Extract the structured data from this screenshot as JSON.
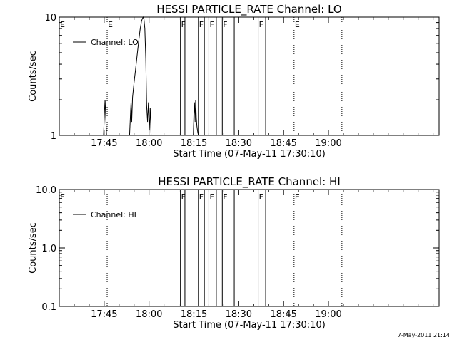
{
  "footer_timestamp": "7-May-2011 21:14",
  "chart_data": [
    {
      "type": "line",
      "title": "HESSI PARTICLE_RATE Channel: LO",
      "xlabel": "Start Time (07-May-11 17:30:10)",
      "ylabel": "Counts/sec",
      "x_unit": "minutes since 17:30",
      "xlim": [
        0,
        127
      ],
      "ylim": [
        1,
        10
      ],
      "y_scale": "log",
      "x_ticks": [
        {
          "value": 15,
          "label": "17:45"
        },
        {
          "value": 30,
          "label": "18:00"
        },
        {
          "value": 45,
          "label": "18:15"
        },
        {
          "value": 60,
          "label": "18:30"
        },
        {
          "value": 75,
          "label": "18:45"
        },
        {
          "value": 90,
          "label": "19:00"
        }
      ],
      "y_ticks": [
        {
          "value": 1,
          "label": "1"
        },
        {
          "value": 10,
          "label": "10"
        }
      ],
      "legend": {
        "position": "top-left",
        "entries": [
          "Channel: LO"
        ]
      },
      "grid": false,
      "series": [
        {
          "name": "Channel: LO",
          "x": [
            0,
            14.8,
            15.1,
            15.3,
            15.5,
            15.8,
            16.0,
            23.5,
            23.8,
            24.0,
            24.2,
            24.5,
            25.0,
            25.5,
            26.0,
            26.5,
            27.0,
            27.5,
            28.0,
            28.3,
            28.6,
            28.9,
            29.2,
            29.5,
            29.8,
            30.1,
            30.4,
            30.7,
            31.0,
            31.5,
            40.5,
            44.8,
            45.0,
            45.2,
            45.4,
            45.6,
            45.8,
            46.0,
            46.2,
            46.5,
            127
          ],
          "y": [
            1,
            1,
            1.6,
            2,
            1.5,
            1,
            1,
            1,
            1.5,
            1.9,
            1.3,
            2.1,
            2.8,
            3.6,
            4.7,
            6.1,
            7.8,
            9.3,
            10.5,
            9.7,
            8.0,
            4.5,
            1.8,
            1.3,
            1.9,
            1.1,
            1.7,
            1.0,
            1,
            1,
            1,
            1,
            1.5,
            1.9,
            1.3,
            2,
            1.4,
            1.2,
            1.1,
            1,
            1
          ]
        }
      ],
      "event_lines": [
        {
          "x": 16.0,
          "style": "dotted",
          "label": "E"
        },
        {
          "x": 40.5,
          "style": "solid",
          "label": "F"
        },
        {
          "x": 42.0,
          "style": "solid",
          "label": ""
        },
        {
          "x": 46.5,
          "style": "solid",
          "label": "F"
        },
        {
          "x": 48.5,
          "style": "solid",
          "label": ""
        },
        {
          "x": 50.0,
          "style": "solid",
          "label": "F"
        },
        {
          "x": 52.5,
          "style": "solid",
          "label": ""
        },
        {
          "x": 54.5,
          "style": "solid",
          "label": "F"
        },
        {
          "x": 58.5,
          "style": "solid",
          "label": ""
        },
        {
          "x": 66.5,
          "style": "solid",
          "label": "F"
        },
        {
          "x": 69.0,
          "style": "solid",
          "label": ""
        },
        {
          "x": 78.5,
          "style": "dotted",
          "label": "E"
        },
        {
          "x": 94.5,
          "style": "dotted",
          "label": ""
        }
      ],
      "edge_label": "E"
    },
    {
      "type": "line",
      "title": "HESSI PARTICLE_RATE Channel: HI",
      "xlabel": "Start Time (07-May-11 17:30:10)",
      "ylabel": "Counts/sec",
      "x_unit": "minutes since 17:30",
      "xlim": [
        0,
        127
      ],
      "ylim": [
        0.1,
        10
      ],
      "y_scale": "log",
      "x_ticks": [
        {
          "value": 15,
          "label": "17:45"
        },
        {
          "value": 30,
          "label": "18:00"
        },
        {
          "value": 45,
          "label": "18:15"
        },
        {
          "value": 60,
          "label": "18:30"
        },
        {
          "value": 75,
          "label": "18:45"
        },
        {
          "value": 90,
          "label": "19:00"
        }
      ],
      "y_ticks": [
        {
          "value": 0.1,
          "label": "0.1"
        },
        {
          "value": 1,
          "label": "1.0"
        },
        {
          "value": 10,
          "label": "10.0"
        }
      ],
      "legend": {
        "position": "top-left",
        "entries": [
          "Channel: HI"
        ]
      },
      "grid": false,
      "series": [
        {
          "name": "Channel: HI",
          "x": [],
          "y": []
        }
      ],
      "event_lines": [
        {
          "x": 16.0,
          "style": "dotted",
          "label": ""
        },
        {
          "x": 40.5,
          "style": "solid",
          "label": "F"
        },
        {
          "x": 42.0,
          "style": "solid",
          "label": ""
        },
        {
          "x": 46.5,
          "style": "solid",
          "label": "F"
        },
        {
          "x": 48.5,
          "style": "solid",
          "label": ""
        },
        {
          "x": 50.0,
          "style": "solid",
          "label": "F"
        },
        {
          "x": 52.5,
          "style": "solid",
          "label": ""
        },
        {
          "x": 54.5,
          "style": "solid",
          "label": "F"
        },
        {
          "x": 58.5,
          "style": "solid",
          "label": ""
        },
        {
          "x": 66.5,
          "style": "solid",
          "label": "F"
        },
        {
          "x": 69.0,
          "style": "solid",
          "label": ""
        },
        {
          "x": 78.5,
          "style": "dotted",
          "label": "E"
        },
        {
          "x": 94.5,
          "style": "dotted",
          "label": ""
        }
      ],
      "edge_label": "E"
    }
  ]
}
